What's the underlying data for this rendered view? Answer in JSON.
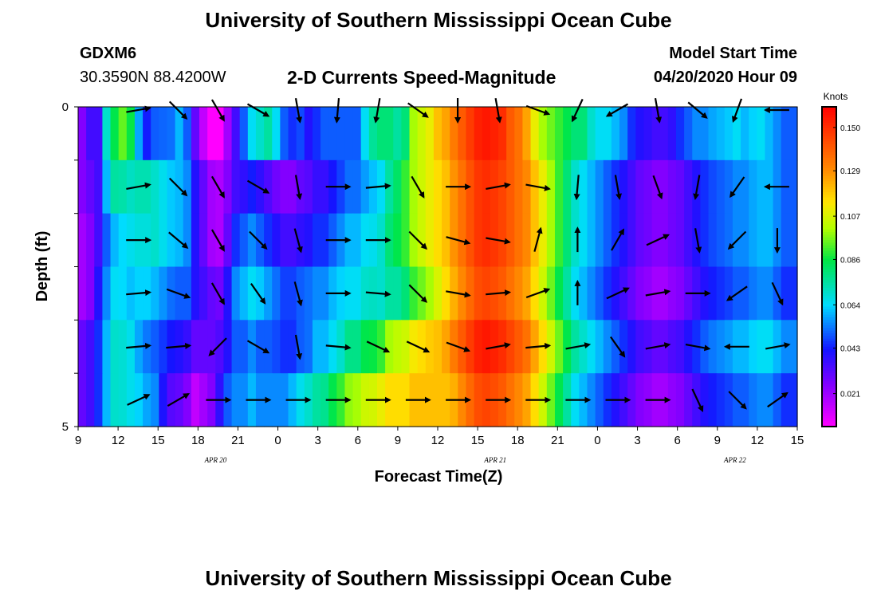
{
  "header": {
    "title": "University of Southern Mississippi Ocean Cube",
    "station": "GDXM6",
    "location": "30.3590N 88.4200W",
    "subtitle": "2-D Currents Speed-Magnitude",
    "model_label": "Model Start Time",
    "model_time": "04/20/2020 Hour 09"
  },
  "footer": {
    "title": "University of Southern Mississippi Ocean Cube"
  },
  "chart_data": {
    "type": "heatmap",
    "xlabel": "Forecast Time(Z)",
    "ylabel": "Depth (ft)",
    "x_tick_labels": [
      "9",
      "12",
      "15",
      "18",
      "21",
      "0",
      "3",
      "6",
      "9",
      "12",
      "15",
      "18",
      "21",
      "0",
      "3",
      "6",
      "9",
      "12",
      "15"
    ],
    "date_labels": [
      {
        "text": "APR 20",
        "at_tick": 4
      },
      {
        "text": "APR 21",
        "at_tick": 11
      },
      {
        "text": "APR 22",
        "at_tick": 17
      }
    ],
    "y_tick_labels": [
      "0",
      "5"
    ],
    "ylim": [
      0,
      5
    ],
    "x_hours": [
      0,
      54
    ],
    "colorbar": {
      "label": "Knots",
      "ticks": [
        "0.150",
        "0.129",
        "0.107",
        "0.086",
        "0.064",
        "0.043",
        "0.021"
      ],
      "range": [
        0.005,
        0.16
      ]
    },
    "columns_speed": [
      0.02,
      0.025,
      0.035,
      0.05,
      0.06,
      0.064,
      0.066,
      0.068,
      0.068,
      0.07,
      0.066,
      0.062,
      0.06,
      0.055,
      0.04,
      0.03,
      0.02,
      0.018,
      0.03,
      0.045,
      0.05,
      0.055,
      0.05,
      0.045,
      0.04,
      0.035,
      0.035,
      0.038,
      0.04,
      0.045,
      0.045,
      0.05,
      0.055,
      0.06,
      0.06,
      0.065,
      0.066,
      0.07,
      0.08,
      0.085,
      0.09,
      0.1,
      0.105,
      0.11,
      0.115,
      0.12,
      0.128,
      0.135,
      0.142,
      0.148,
      0.15,
      0.148,
      0.145,
      0.14,
      0.135,
      0.13,
      0.12,
      0.11,
      0.1,
      0.09,
      0.08,
      0.07,
      0.065,
      0.06,
      0.055,
      0.05,
      0.045,
      0.04,
      0.035,
      0.03,
      0.028,
      0.025,
      0.025,
      0.028,
      0.03,
      0.035,
      0.04,
      0.045,
      0.048,
      0.05,
      0.052,
      0.055,
      0.055,
      0.058,
      0.06,
      0.06,
      0.055,
      0.05,
      0.05
    ],
    "row_offsets": [
      [
        0.005,
        0.01,
        0.0,
        0.02,
        0.025,
        0.03,
        0.02,
        -0.01,
        -0.025,
        -0.02,
        -0.015,
        -0.01,
        0.0,
        -0.005,
        -0.01,
        -0.015,
        -0.015,
        -0.015,
        -0.01,
        -0.01,
        0.0,
        0.01,
        0.02,
        0.03,
        0.025,
        0.015,
        0.01,
        0.01,
        0.0,
        0.0,
        0.005,
        0.0,
        -0.005,
        -0.01,
        -0.01,
        0.0,
        0.01,
        0.01,
        0.0,
        -0.01,
        -0.01,
        0.0,
        0.0,
        0.0,
        0.005,
        0.005,
        0.005,
        0.005,
        0.005,
        0.005,
        0.005,
        0.005,
        0.005,
        0.0,
        0.0,
        -0.005,
        -0.01,
        -0.01,
        -0.005,
        0.0,
        0.005,
        0.01,
        0.015,
        0.01,
        0.01,
        0.015,
        0.015,
        0.015,
        0.01,
        0.01,
        0.01,
        0.01,
        0.01,
        0.01,
        0.015,
        0.015,
        0.015,
        0.01,
        0.01,
        0.01,
        0.01,
        0.01,
        0.005,
        0.005,
        0.005,
        0.0,
        0.0,
        0.0,
        0.0
      ],
      [
        0.005,
        0.005,
        0.0,
        0.01,
        0.015,
        0.01,
        0.005,
        0.005,
        0.005,
        0.0,
        0.0,
        0.0,
        0.0,
        0.0,
        0.0,
        0.0,
        0.0,
        0.0,
        -0.005,
        -0.01,
        -0.012,
        -0.012,
        -0.012,
        -0.012,
        -0.012,
        -0.01,
        -0.01,
        -0.008,
        -0.008,
        -0.008,
        -0.008,
        -0.008,
        -0.008,
        -0.008,
        -0.008,
        -0.008,
        -0.005,
        -0.005,
        -0.005,
        -0.003,
        0.0,
        0.0,
        0.0,
        0.0,
        0.0,
        0.0,
        0.0,
        0.0,
        0.0,
        0.0,
        0.0,
        0.0,
        0.0,
        0.0,
        0.0,
        0.0,
        0.0,
        0.0,
        0.0,
        0.0,
        0.0,
        0.0,
        0.0,
        0.0,
        0.0,
        0.0,
        0.0,
        0.0,
        0.0,
        0.0,
        0.0,
        0.0,
        0.0,
        0.0,
        0.0,
        0.0,
        0.0,
        0.0,
        0.0,
        0.0,
        0.0,
        0.0,
        0.0,
        0.0,
        0.0,
        0.0,
        0.0,
        0.0,
        0.0
      ],
      [
        0.0,
        0.0,
        0.0,
        0.0,
        0.0,
        0.0,
        0.0,
        0.0,
        0.0,
        0.0,
        0.0,
        0.0,
        0.0,
        0.0,
        0.0,
        0.0,
        0.0,
        0.0,
        0.0,
        0.0,
        0.0,
        0.0,
        0.0,
        0.0,
        0.0,
        0.0,
        0.0,
        0.0,
        0.0,
        0.0,
        0.0,
        0.0,
        0.0,
        0.0,
        0.0,
        0.0,
        0.0,
        0.0,
        0.0,
        0.0,
        0.0,
        0.0,
        0.0,
        0.0,
        0.0,
        0.0,
        0.0,
        0.0,
        0.0,
        0.0,
        0.0,
        0.0,
        0.0,
        0.0,
        0.0,
        0.0,
        0.0,
        0.0,
        0.0,
        0.0,
        0.0,
        0.0,
        0.0,
        0.0,
        0.0,
        0.0,
        0.0,
        0.0,
        0.0,
        0.0,
        0.0,
        0.0,
        0.0,
        0.0,
        0.0,
        0.0,
        0.0,
        0.0,
        0.0,
        0.0,
        0.0,
        0.0,
        0.0,
        0.0,
        0.0,
        0.0,
        0.0,
        0.0,
        0.0
      ],
      [
        0.0,
        0.0,
        0.005,
        0.005,
        0.005,
        0.0,
        -0.005,
        -0.005,
        -0.005,
        -0.01,
        -0.01,
        -0.01,
        -0.01,
        -0.005,
        0.0,
        0.005,
        0.01,
        0.01,
        0.01,
        0.01,
        0.01,
        0.01,
        0.012,
        0.012,
        0.012,
        0.012,
        0.012,
        0.012,
        0.012,
        0.01,
        0.01,
        0.01,
        0.008,
        0.005,
        0.005,
        0.005,
        0.005,
        0.0,
        -0.005,
        -0.01,
        -0.01,
        -0.01,
        -0.01,
        -0.01,
        -0.008,
        -0.005,
        -0.005,
        -0.005,
        -0.005,
        -0.005,
        -0.005,
        -0.005,
        -0.005,
        -0.005,
        -0.005,
        -0.005,
        -0.005,
        -0.005,
        -0.005,
        -0.005,
        -0.005,
        -0.005,
        -0.005,
        -0.005,
        -0.005,
        -0.005,
        -0.005,
        -0.005,
        -0.005,
        -0.005,
        -0.005,
        -0.005,
        -0.005,
        -0.005,
        -0.005,
        -0.005,
        -0.005,
        -0.005,
        -0.005,
        -0.005,
        -0.005,
        -0.005,
        -0.005,
        -0.005,
        -0.005,
        -0.005,
        -0.005,
        -0.005,
        -0.005
      ],
      [
        0.01,
        0.01,
        0.01,
        0.01,
        0.01,
        0.005,
        0.0,
        -0.01,
        -0.015,
        -0.02,
        -0.02,
        -0.02,
        -0.02,
        -0.018,
        -0.01,
        0.0,
        0.01,
        0.015,
        0.01,
        0.005,
        0.0,
        0.0,
        0.0,
        0.005,
        0.008,
        0.01,
        0.01,
        0.012,
        0.012,
        0.015,
        0.015,
        0.015,
        0.015,
        0.018,
        0.018,
        0.02,
        0.02,
        0.02,
        0.02,
        0.018,
        0.015,
        0.012,
        0.01,
        0.008,
        0.005,
        0.005,
        0.005,
        0.005,
        0.005,
        0.005,
        0.005,
        0.005,
        0.005,
        0.005,
        0.005,
        0.005,
        0.005,
        0.005,
        0.005,
        0.005,
        0.005,
        0.005,
        0.005,
        0.005,
        0.005,
        0.005,
        0.005,
        0.005,
        0.005,
        0.005,
        0.005,
        0.005,
        0.005,
        0.005,
        0.005,
        0.005,
        0.005,
        0.005,
        0.005,
        0.005,
        0.005,
        0.005,
        0.005,
        0.005,
        0.005,
        0.005,
        0.005,
        0.005,
        0.005
      ],
      [
        0.01,
        0.01,
        0.01,
        0.01,
        0.01,
        0.005,
        0.0,
        -0.005,
        -0.01,
        -0.015,
        -0.025,
        -0.03,
        -0.03,
        -0.03,
        -0.025,
        -0.01,
        0.005,
        0.02,
        0.02,
        0.01,
        0.005,
        0.005,
        0.005,
        0.01,
        0.015,
        0.02,
        0.025,
        0.028,
        0.03,
        0.03,
        0.032,
        0.035,
        0.035,
        0.038,
        0.04,
        0.04,
        0.04,
        0.04,
        0.035,
        0.03,
        0.025,
        0.02,
        0.015,
        0.01,
        0.005,
        0.0,
        -0.005,
        -0.005,
        -0.005,
        -0.005,
        -0.005,
        -0.005,
        -0.005,
        -0.005,
        -0.005,
        -0.005,
        -0.005,
        -0.005,
        -0.005,
        -0.005,
        -0.005,
        -0.005,
        -0.005,
        -0.005,
        -0.005,
        -0.005,
        -0.005,
        -0.005,
        -0.005,
        -0.005,
        -0.005,
        -0.005,
        -0.005,
        -0.005,
        -0.005,
        -0.005,
        -0.005,
        -0.005,
        -0.005,
        -0.005,
        -0.005,
        -0.005,
        -0.005,
        -0.005,
        -0.005,
        -0.005,
        -0.005,
        -0.005,
        -0.005
      ]
    ],
    "vector_hours": [
      4.5,
      7.5,
      10.5,
      13.5,
      16.5,
      19.5,
      22.5,
      25.5,
      28.5,
      31.5,
      34.5,
      37.5,
      40.5,
      43.5,
      46.5,
      49.5,
      52.5
    ],
    "vector_angles_deg": [
      [
        -10,
        45,
        60,
        30,
        80,
        95,
        100,
        35,
        90,
        80,
        20,
        115,
        150,
        80,
        40,
        110,
        180
      ],
      [
        -10,
        45,
        60,
        30,
        80,
        0,
        -5,
        60,
        0,
        -10,
        10,
        95,
        80,
        70,
        100,
        125,
        180
      ],
      [
        0,
        40,
        60,
        45,
        75,
        0,
        0,
        45,
        15,
        10,
        -75,
        -90,
        -60,
        -25,
        80,
        135,
        90
      ],
      [
        -5,
        20,
        60,
        55,
        75,
        0,
        5,
        45,
        10,
        -5,
        -20,
        -90,
        -25,
        -10,
        0,
        145,
        65
      ],
      [
        -5,
        -5,
        135,
        30,
        80,
        5,
        25,
        25,
        20,
        -10,
        -5,
        -10,
        55,
        -10,
        10,
        180,
        -10
      ],
      [
        -25,
        -30,
        0,
        0,
        0,
        0,
        0,
        0,
        0,
        0,
        0,
        0,
        0,
        0,
        65,
        45,
        -35
      ]
    ]
  }
}
